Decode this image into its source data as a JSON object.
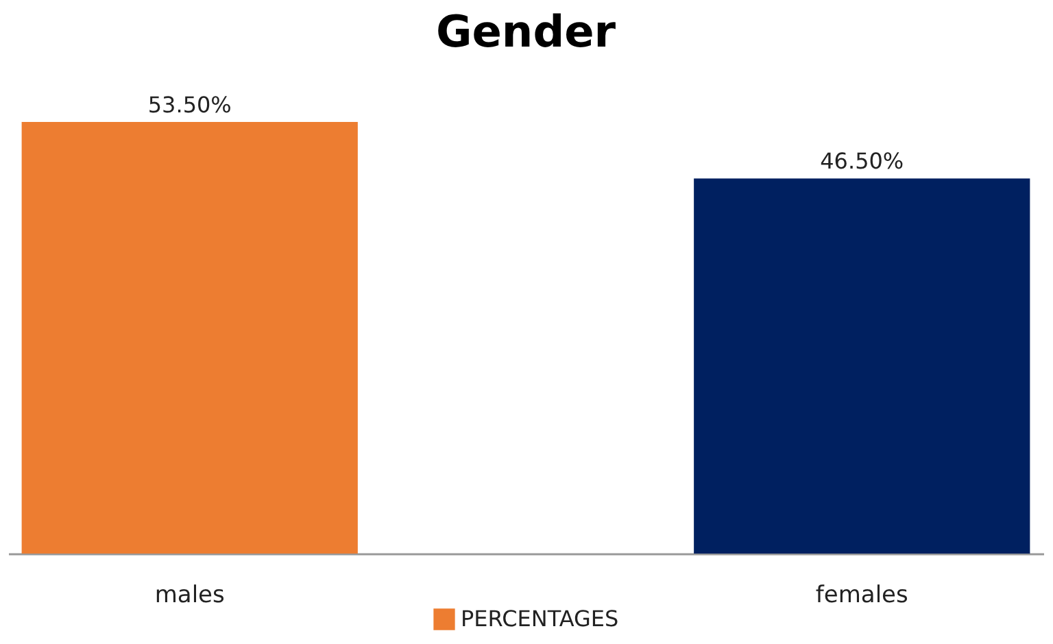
{
  "chart_data": {
    "type": "bar",
    "title": "Gender",
    "categories": [
      "males",
      "females"
    ],
    "series": [
      {
        "name": "PERCENTAGES",
        "colors": [
          "#ed7d31",
          "#002060"
        ],
        "values": [
          53.5,
          46.5
        ],
        "value_labels": [
          "53.50%",
          "46.50%"
        ]
      }
    ],
    "tick_labels": "x",
    "grid": false,
    "legend": "bottom"
  }
}
